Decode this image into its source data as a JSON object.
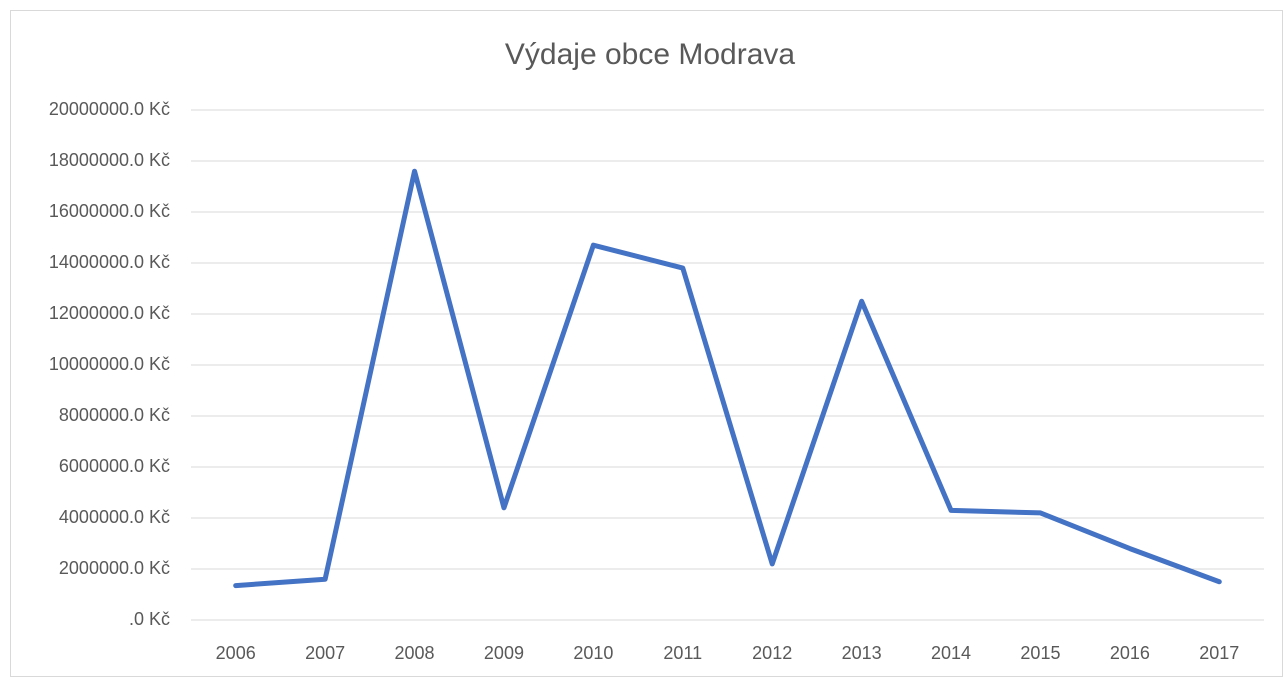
{
  "chart_data": {
    "type": "line",
    "title": "Výdaje obce Modrava",
    "categories": [
      "2006",
      "2007",
      "2008",
      "2009",
      "2010",
      "2011",
      "2012",
      "2013",
      "2014",
      "2015",
      "2016",
      "2017"
    ],
    "series": [
      {
        "color": "#4472c4",
        "values": [
          1350000,
          1600000,
          17600000,
          4400000,
          14700000,
          13800000,
          2200000,
          12500000,
          4300000,
          4200000,
          2800000,
          1500000
        ]
      }
    ],
    "ylim": [
      0,
      20000000
    ],
    "yticks": [
      {
        "value": 0,
        "label": ".0 Kč"
      },
      {
        "value": 2000000,
        "label": "2000000.0 Kč"
      },
      {
        "value": 4000000,
        "label": "4000000.0 Kč"
      },
      {
        "value": 6000000,
        "label": "6000000.0 Kč"
      },
      {
        "value": 8000000,
        "label": "8000000.0 Kč"
      },
      {
        "value": 10000000,
        "label": "10000000.0 Kč"
      },
      {
        "value": 12000000,
        "label": "12000000.0 Kč"
      },
      {
        "value": 14000000,
        "label": "14000000.0 Kč"
      },
      {
        "value": 16000000,
        "label": "16000000.0 Kč"
      },
      {
        "value": 18000000,
        "label": "18000000.0 Kč"
      },
      {
        "value": 20000000,
        "label": "20000000.0 Kč"
      }
    ],
    "grid": true
  }
}
